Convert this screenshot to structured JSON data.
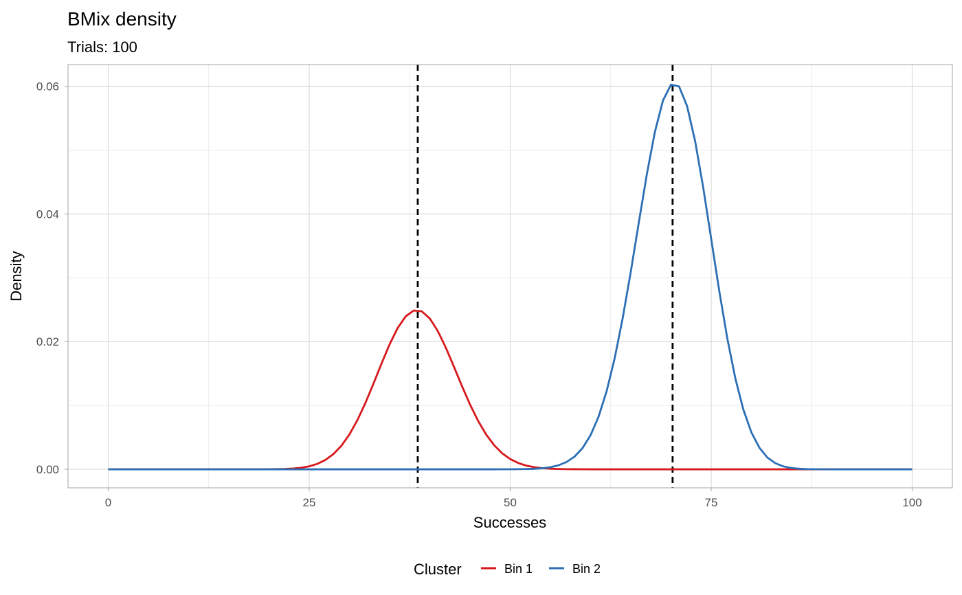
{
  "chart_data": {
    "type": "line",
    "title": "BMix density",
    "subtitle": "Trials: 100",
    "xlabel": "Successes",
    "ylabel": "Density",
    "xlim": [
      -5,
      105
    ],
    "ylim": [
      -0.0029,
      0.0634
    ],
    "x_ticks": [
      0,
      25,
      50,
      75,
      100
    ],
    "x_tick_labels": [
      "0",
      "25",
      "50",
      "75",
      "100"
    ],
    "y_ticks": [
      0,
      0.02,
      0.04,
      0.06
    ],
    "y_tick_labels": [
      "0.00",
      "0.02",
      "0.04",
      "0.06"
    ],
    "grid": true,
    "legend": {
      "title": "Cluster",
      "placement": "bottom"
    },
    "trials": 100,
    "series": [
      {
        "name": "Bin 1",
        "color": "#D7191C",
        "distribution": "binomial",
        "p": 0.385,
        "weight": 0.305
      },
      {
        "name": "Bin 2",
        "color": "#2C6FB4",
        "distribution": "binomial",
        "p": 0.702,
        "weight": 0.695
      }
    ],
    "vlines": [
      {
        "x": 38.5,
        "style": "dashed",
        "color": "#000000"
      },
      {
        "x": 70.2,
        "style": "dashed",
        "color": "#000000"
      }
    ]
  }
}
